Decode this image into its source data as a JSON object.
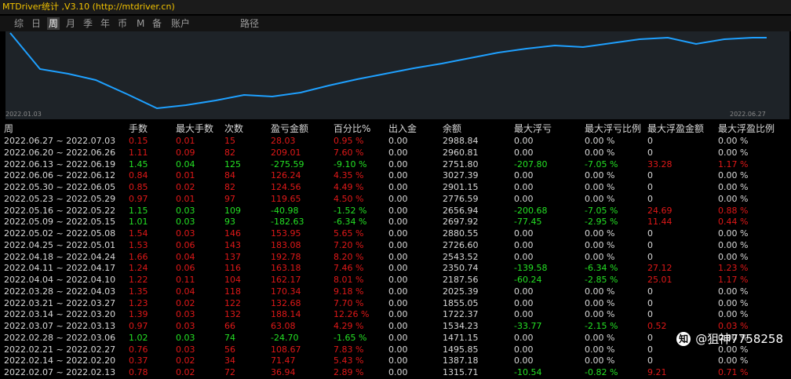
{
  "window": {
    "title": "MTDriver统计 ,V3.10 (http://mtdriver.cn)"
  },
  "toolbar": {
    "tabs": [
      "综",
      "日",
      "周",
      "月",
      "季",
      "年",
      "币",
      "M",
      "备",
      "账户",
      "路径"
    ],
    "active_tab": "周"
  },
  "chart": {
    "start_label": "2022.01.03",
    "end_label": "2022.06.27",
    "line_color": "#1ea0ff"
  },
  "chart_data": {
    "type": "line",
    "x": [
      "2022.01.03",
      "",
      "",
      "",
      "",
      "",
      "",
      "",
      "",
      "",
      "",
      "",
      "",
      "",
      "",
      "",
      "",
      "",
      "",
      "",
      "",
      "",
      "",
      "",
      "",
      "2022.06.27"
    ],
    "values": [
      1,
      0.9,
      0.88,
      0.84,
      0.73,
      0.61,
      0.6,
      0.62,
      0.66,
      0.7,
      0.69,
      0.72,
      0.79,
      0.84,
      0.9,
      0.94,
      0.98,
      1.0,
      1.0,
      1.0,
      0.99,
      1.0,
      1.0,
      1.0,
      1.0,
      1.0
    ],
    "title": "",
    "xlabel": "",
    "ylabel": ""
  },
  "table": {
    "headers": [
      "周",
      "手数",
      "最大手数",
      "次数",
      "盈亏金额",
      "百分比%",
      "出入金",
      "余额",
      "最大浮亏",
      "最大浮亏比例",
      "最大浮盈金额",
      "最大浮盈比例"
    ],
    "rows": [
      {
        "c": [
          "2022.06.27 ~ 2022.07.03",
          "0.15",
          "0.01",
          "15",
          "28.03",
          "0.95 %",
          "0.00",
          "2988.84",
          "0.00",
          "0.00 %",
          "0",
          "0.00 %"
        ],
        "s": "red"
      },
      {
        "c": [
          "2022.06.20 ~ 2022.06.26",
          "1.11",
          "0.09",
          "82",
          "209.01",
          "7.60 %",
          "0.00",
          "2960.81",
          "0.00",
          "0.00 %",
          "0",
          "0.00 %"
        ],
        "s": "red"
      },
      {
        "c": [
          "2022.06.13 ~ 2022.06.19",
          "1.45",
          "0.04",
          "125",
          "-275.59",
          "-9.10 %",
          "0.00",
          "2751.80",
          "-207.80",
          "-7.05 %",
          "33.28",
          "1.17 %"
        ],
        "s": "green",
        "r": true
      },
      {
        "c": [
          "2022.06.06 ~ 2022.06.12",
          "0.84",
          "0.01",
          "84",
          "126.24",
          "4.35 %",
          "0.00",
          "3027.39",
          "0.00",
          "0.00 %",
          "0",
          "0.00 %"
        ],
        "s": "red"
      },
      {
        "c": [
          "2022.05.30 ~ 2022.06.05",
          "0.85",
          "0.02",
          "82",
          "124.56",
          "4.49 %",
          "0.00",
          "2901.15",
          "0.00",
          "0.00 %",
          "0",
          "0.00 %"
        ],
        "s": "red"
      },
      {
        "c": [
          "2022.05.23 ~ 2022.05.29",
          "0.97",
          "0.01",
          "97",
          "119.65",
          "4.50 %",
          "0.00",
          "2776.59",
          "0.00",
          "0.00 %",
          "0",
          "0.00 %"
        ],
        "s": "red"
      },
      {
        "c": [
          "2022.05.16 ~ 2022.05.22",
          "1.15",
          "0.03",
          "109",
          "-40.98",
          "-1.52 %",
          "0.00",
          "2656.94",
          "-200.68",
          "-7.05 %",
          "24.69",
          "0.88 %"
        ],
        "s": "green",
        "r": true
      },
      {
        "c": [
          "2022.05.09 ~ 2022.05.15",
          "1.01",
          "0.03",
          "93",
          "-182.63",
          "-6.34 %",
          "0.00",
          "2697.92",
          "-77.45",
          "-2.95 %",
          "11.44",
          "0.44 %"
        ],
        "s": "green",
        "r": true
      },
      {
        "c": [
          "2022.05.02 ~ 2022.05.08",
          "1.54",
          "0.03",
          "146",
          "153.95",
          "5.65 %",
          "0.00",
          "2880.55",
          "0.00",
          "0.00 %",
          "0",
          "0.00 %"
        ],
        "s": "red"
      },
      {
        "c": [
          "2022.04.25 ~ 2022.05.01",
          "1.53",
          "0.06",
          "143",
          "183.08",
          "7.20 %",
          "0.00",
          "2726.60",
          "0.00",
          "0.00 %",
          "0",
          "0.00 %"
        ],
        "s": "red"
      },
      {
        "c": [
          "2022.04.18 ~ 2022.04.24",
          "1.66",
          "0.04",
          "137",
          "192.78",
          "8.20 %",
          "0.00",
          "2543.52",
          "0.00",
          "0.00 %",
          "0",
          "0.00 %"
        ],
        "s": "red"
      },
      {
        "c": [
          "2022.04.11 ~ 2022.04.17",
          "1.24",
          "0.06",
          "116",
          "163.18",
          "7.46 %",
          "0.00",
          "2350.74",
          "-139.58",
          "-6.34 %",
          "27.12",
          "1.23 %"
        ],
        "s": "red",
        "m": true
      },
      {
        "c": [
          "2022.04.04 ~ 2022.04.10",
          "1.22",
          "0.11",
          "104",
          "162.17",
          "8.01 %",
          "0.00",
          "2187.56",
          "-60.24",
          "-2.85 %",
          "25.01",
          "1.17 %"
        ],
        "s": "red",
        "m": true
      },
      {
        "c": [
          "2022.03.28 ~ 2022.04.03",
          "1.35",
          "0.04",
          "118",
          "170.34",
          "9.18 %",
          "0.00",
          "2025.39",
          "0.00",
          "0.00 %",
          "0",
          "0.00 %"
        ],
        "s": "red"
      },
      {
        "c": [
          "2022.03.21 ~ 2022.03.27",
          "1.23",
          "0.02",
          "122",
          "132.68",
          "7.70 %",
          "0.00",
          "1855.05",
          "0.00",
          "0.00 %",
          "0",
          "0.00 %"
        ],
        "s": "red"
      },
      {
        "c": [
          "2022.03.14 ~ 2022.03.20",
          "1.39",
          "0.03",
          "132",
          "188.14",
          "12.26 %",
          "0.00",
          "1722.37",
          "0.00",
          "0.00 %",
          "0",
          "0.00 %"
        ],
        "s": "red"
      },
      {
        "c": [
          "2022.03.07 ~ 2022.03.13",
          "0.97",
          "0.03",
          "66",
          "63.08",
          "4.29 %",
          "0.00",
          "1534.23",
          "-33.77",
          "-2.15 %",
          "0.52",
          "0.03 %"
        ],
        "s": "red",
        "m": true
      },
      {
        "c": [
          "2022.02.28 ~ 2022.03.06",
          "1.02",
          "0.03",
          "74",
          "-24.70",
          "-1.65 %",
          "0.00",
          "1471.15",
          "0.00",
          "0.00 %",
          "0",
          "0.00 %"
        ],
        "s": "green"
      },
      {
        "c": [
          "2022.02.21 ~ 2022.02.27",
          "0.76",
          "0.03",
          "56",
          "108.67",
          "7.83 %",
          "0.00",
          "1495.85",
          "0.00",
          "0.00 %",
          "0",
          "0.00 %"
        ],
        "s": "red"
      },
      {
        "c": [
          "2022.02.14 ~ 2022.02.20",
          "0.37",
          "0.02",
          "34",
          "71.47",
          "5.43 %",
          "0.00",
          "1387.18",
          "0.00",
          "0.00 %",
          "0",
          "0.00 %"
        ],
        "s": "red"
      },
      {
        "c": [
          "2022.02.07 ~ 2022.02.13",
          "0.78",
          "0.02",
          "72",
          "36.94",
          "2.89 %",
          "0.00",
          "1315.71",
          "-10.54",
          "-0.82 %",
          "9.21",
          "0.71 %"
        ],
        "s": "red",
        "m": true
      }
    ]
  },
  "watermark": {
    "text": "@狙神7758258",
    "icon": "zhihu-logo-icon"
  }
}
